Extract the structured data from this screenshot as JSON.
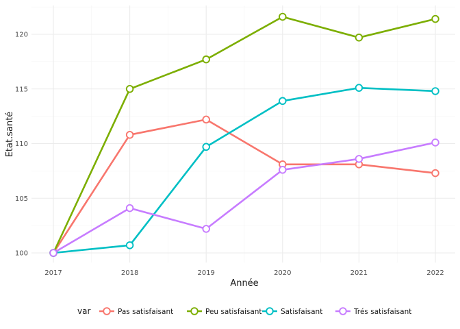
{
  "chart_data": {
    "type": "line",
    "xlabel": "Année",
    "ylabel": "Etat.santé",
    "x": [
      2017,
      2018,
      2019,
      2020,
      2021,
      2022
    ],
    "x_ticks": [
      "2017",
      "2018",
      "2019",
      "2020",
      "2021",
      "2022"
    ],
    "ylim": [
      99.0,
      122.6
    ],
    "y_ticks": [
      100,
      105,
      110,
      115,
      120
    ],
    "y_tick_labels": [
      "100",
      "105",
      "110",
      "115",
      "120"
    ],
    "grid": true,
    "legend": {
      "title": "var",
      "position": "bottom"
    },
    "series": [
      {
        "name": "Pas satisfaisant",
        "color": "#F8766D",
        "values": [
          100,
          110.8,
          112.2,
          108.1,
          108.1,
          107.3
        ]
      },
      {
        "name": "Peu satisfaisant",
        "color": "#7CAE00",
        "values": [
          100,
          115.0,
          117.7,
          121.6,
          119.7,
          121.4
        ]
      },
      {
        "name": "Satisfaisant",
        "color": "#00BFC4",
        "values": [
          100,
          100.7,
          109.7,
          113.9,
          115.1,
          114.8
        ]
      },
      {
        "name": "Trés satisfaisant",
        "color": "#C77CFF",
        "values": [
          100,
          104.1,
          102.2,
          107.6,
          108.6,
          110.1
        ]
      }
    ]
  }
}
